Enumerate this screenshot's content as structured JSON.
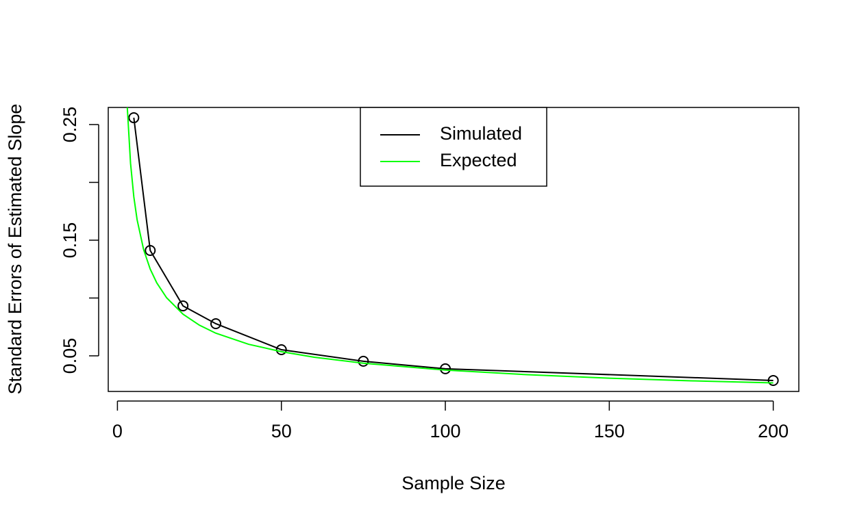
{
  "chart_data": {
    "type": "line",
    "xlabel": "Sample Size",
    "ylabel": "Standard Errors of Estimated Slope",
    "xlim": [
      -2.8,
      207.8
    ],
    "xticks": [
      0,
      50,
      100,
      150,
      200
    ],
    "ylim": [
      0.0192,
      0.2648
    ],
    "yticks": [
      0.05,
      {
        "value": 0.1,
        "label": null
      },
      0.15,
      {
        "value": 0.2,
        "label": null
      },
      0.25
    ],
    "legend": "top",
    "series": [
      {
        "name": "Simulated",
        "color": "#000000",
        "markers": true,
        "x": [
          5,
          10,
          20,
          30,
          50,
          75,
          100,
          200
        ],
        "values": [
          0.2559,
          0.1411,
          0.0932,
          0.0778,
          0.0553,
          0.0453,
          0.0388,
          0.0287
        ]
      },
      {
        "name": "Expected",
        "color": "#00ff00",
        "markers": false,
        "x": [
          3,
          4,
          5,
          6,
          8,
          10,
          12,
          15,
          20,
          25,
          30,
          40,
          50,
          60,
          75,
          100,
          125,
          150,
          175,
          200
        ],
        "values": [
          0.2652,
          0.2165,
          0.1875,
          0.1677,
          0.1417,
          0.125,
          0.1131,
          0.1002,
          0.086,
          0.0765,
          0.0696,
          0.06,
          0.0536,
          0.0488,
          0.0436,
          0.0377,
          0.0337,
          0.0307,
          0.0284,
          0.0266
        ]
      }
    ]
  }
}
